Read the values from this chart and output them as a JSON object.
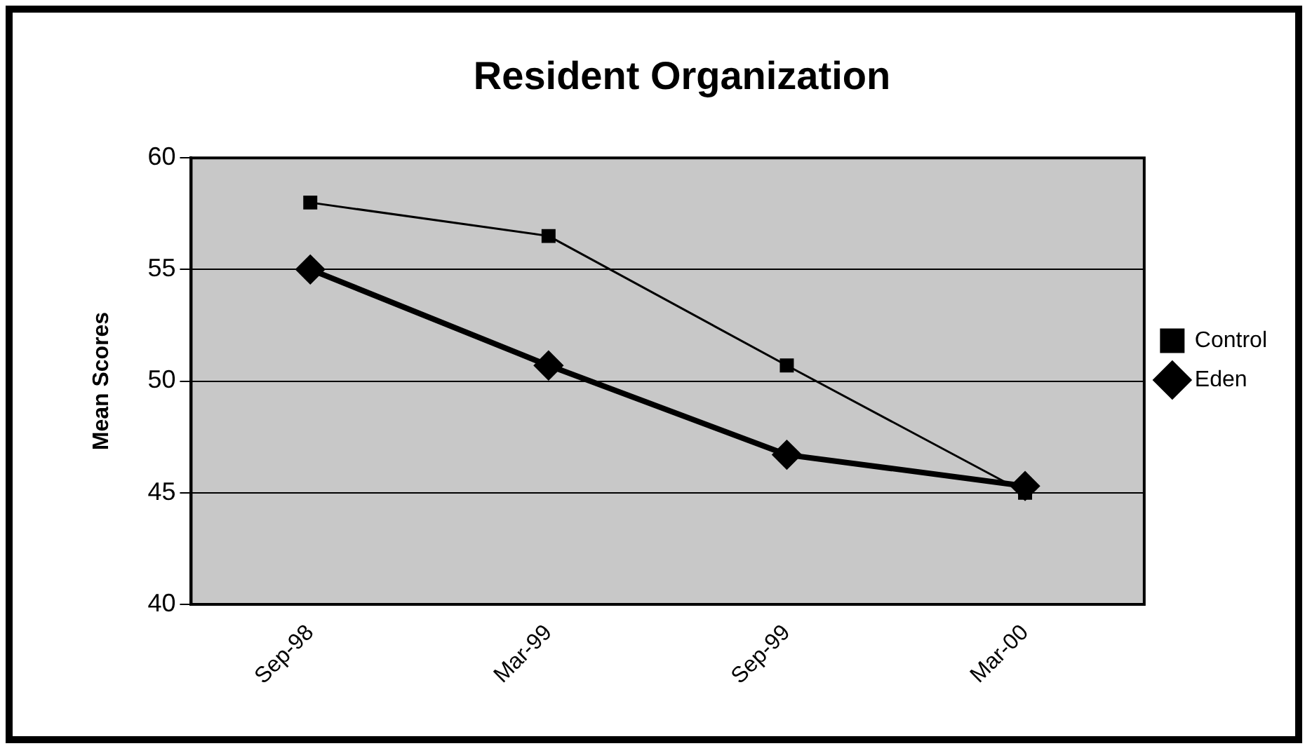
{
  "chart_data": {
    "type": "line",
    "title": "Resident Organization",
    "ylabel": "Mean Scores",
    "categories": [
      "Sep-98",
      "Mar-99",
      "Sep-99",
      "Mar-00"
    ],
    "series": [
      {
        "name": "Eden",
        "color": "#000000",
        "marker": "diamond",
        "values": [
          55,
          50.7,
          46.7,
          45.3
        ]
      },
      {
        "name": "Control",
        "color": "#000000",
        "marker": "square",
        "values": [
          58,
          56.5,
          50.7,
          45
        ]
      }
    ],
    "ylim": [
      40,
      60
    ],
    "yticks": [
      40,
      45,
      50,
      55,
      60
    ],
    "grid": "y",
    "legend": "right"
  }
}
